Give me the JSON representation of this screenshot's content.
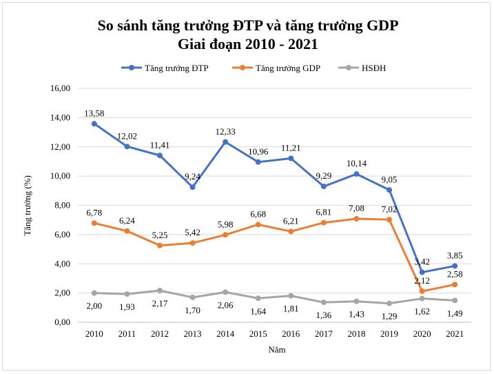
{
  "chart_data": {
    "type": "line",
    "title": "So sánh tăng trưởng ĐTP và tăng trưởng GDP",
    "subtitle": "Giai đoạn 2010 - 2021",
    "xlabel": "Năm",
    "ylabel": "Tăng trưởng (%)",
    "ylim": [
      0,
      16
    ],
    "yticks": [
      "0,00",
      "2,00",
      "4,00",
      "6,00",
      "8,00",
      "10,00",
      "12,00",
      "14,00",
      "16,00"
    ],
    "grid": true,
    "legend": "top",
    "categories": [
      "2010",
      "2011",
      "2012",
      "2013",
      "2014",
      "2015",
      "2016",
      "2017",
      "2018",
      "2019",
      "2020",
      "2021"
    ],
    "series": [
      {
        "name": "Tăng trưởng ĐTP",
        "color": "#4472c4",
        "values": [
          13.58,
          12.02,
          11.41,
          9.24,
          12.33,
          10.96,
          11.21,
          9.29,
          10.14,
          9.05,
          3.42,
          3.85
        ],
        "labels": [
          "13,58",
          "12,02",
          "11,41",
          "9,24",
          "12,33",
          "10,96",
          "11,21",
          "9,29",
          "10,14",
          "9,05",
          "3,42",
          "3,85"
        ]
      },
      {
        "name": "Tăng trưởng GDP",
        "color": "#ed7d31",
        "values": [
          6.78,
          6.24,
          5.25,
          5.42,
          5.98,
          6.68,
          6.21,
          6.81,
          7.08,
          7.02,
          2.12,
          2.58
        ],
        "labels": [
          "6,78",
          "6,24",
          "5,25",
          "5,42",
          "5,98",
          "6,68",
          "6,21",
          "6,81",
          "7,08",
          "7,02",
          "2,12",
          "2,58"
        ]
      },
      {
        "name": "HSĐH",
        "color": "#a5a5a5",
        "values": [
          2.0,
          1.93,
          2.17,
          1.7,
          2.06,
          1.64,
          1.81,
          1.36,
          1.43,
          1.29,
          1.62,
          1.49
        ],
        "labels": [
          "2,00",
          "1,93",
          "2,17",
          "1,70",
          "2,06",
          "1,64",
          "1,81",
          "1,36",
          "1,43",
          "1,29",
          "1,62",
          "1,49"
        ]
      }
    ]
  }
}
